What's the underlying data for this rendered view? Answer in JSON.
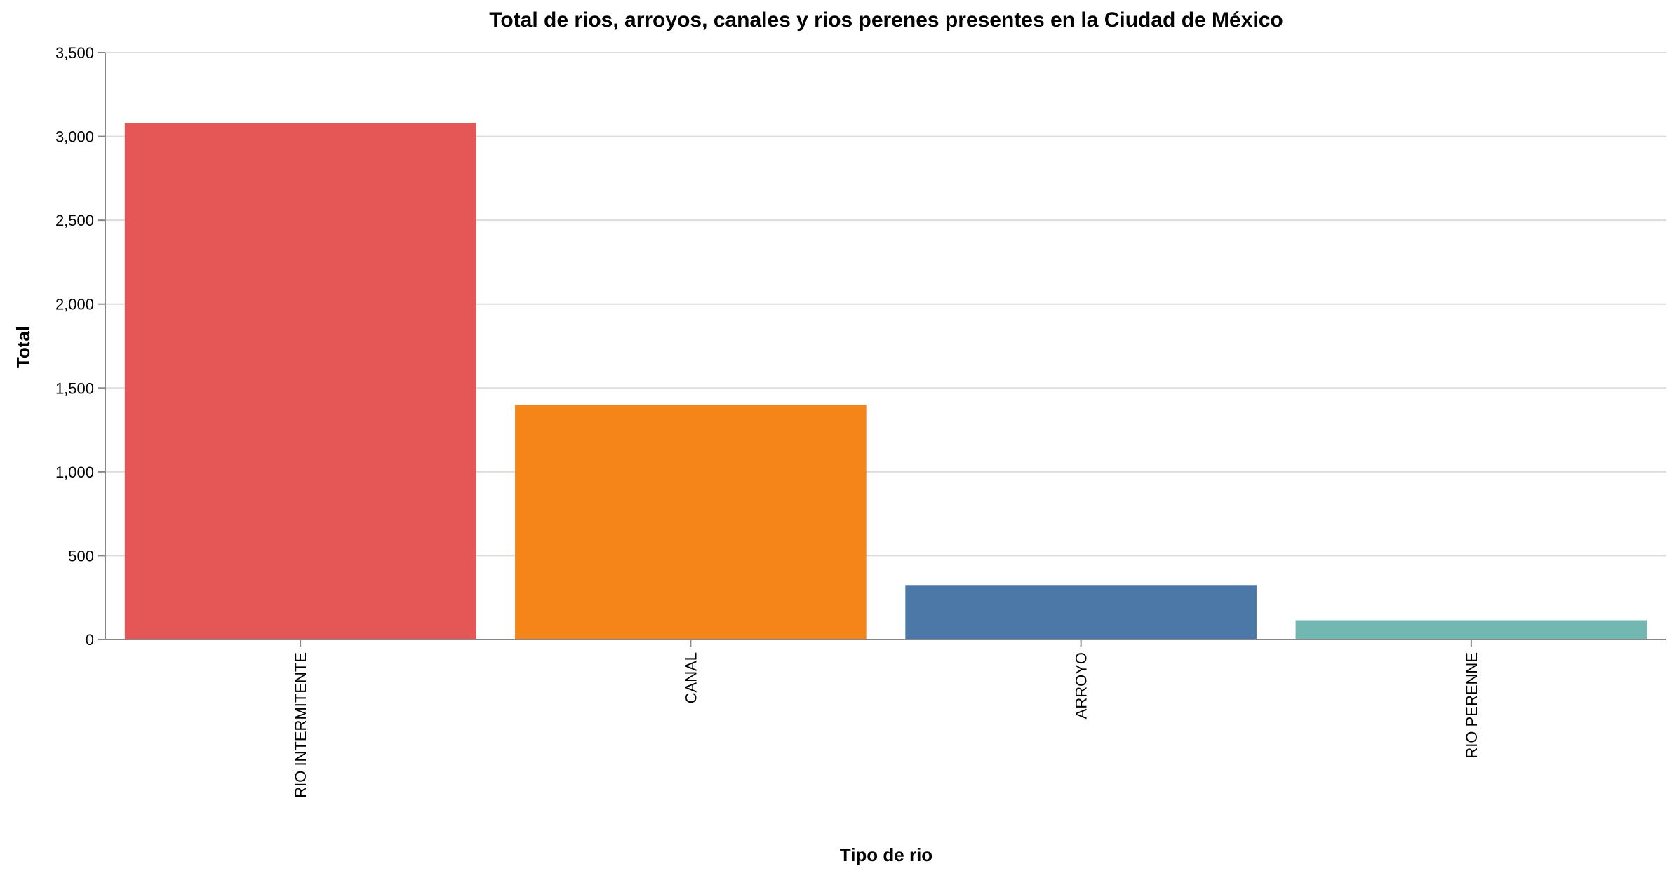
{
  "chart_data": {
    "type": "bar",
    "title": "Total de rios, arroyos, canales y rios perenes presentes en la Ciudad de México",
    "xlabel": "Tipo de rio",
    "ylabel": "Total",
    "categories": [
      "RIO INTERMITENTE",
      "CANAL",
      "ARROYO",
      "RIO PERENNE"
    ],
    "values": [
      3080,
      1400,
      325,
      115
    ],
    "colors": [
      "#e45756",
      "#f58518",
      "#4c78a8",
      "#72b7b2"
    ],
    "ylim": [
      0,
      3500
    ],
    "yticks": [
      0,
      500,
      1000,
      1500,
      2000,
      2500,
      3000,
      3500
    ],
    "ytick_labels": [
      "0",
      "500",
      "1,000",
      "1,500",
      "2,000",
      "2,500",
      "3,000",
      "3,500"
    ],
    "grid": true,
    "legend": "none"
  }
}
